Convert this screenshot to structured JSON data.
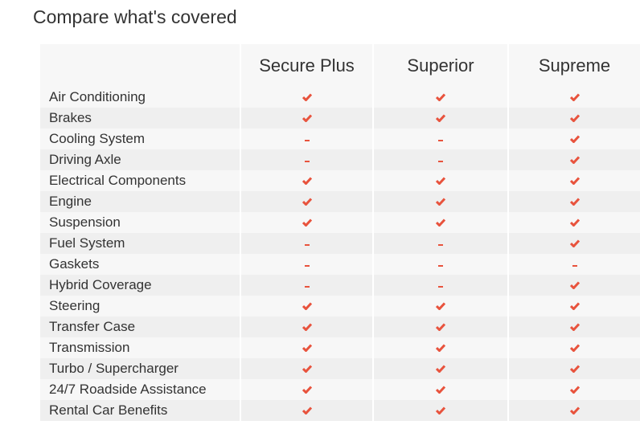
{
  "title": "Compare what's covered",
  "accent_color": "#e8533d",
  "plans": [
    "Secure Plus",
    "Superior",
    "Supreme"
  ],
  "rows": [
    {
      "feature": "Air Conditioning",
      "coverage": [
        true,
        true,
        true
      ]
    },
    {
      "feature": "Brakes",
      "coverage": [
        true,
        true,
        true
      ]
    },
    {
      "feature": "Cooling System",
      "coverage": [
        false,
        false,
        true
      ]
    },
    {
      "feature": "Driving Axle",
      "coverage": [
        false,
        false,
        true
      ]
    },
    {
      "feature": "Electrical Components",
      "coverage": [
        true,
        true,
        true
      ]
    },
    {
      "feature": "Engine",
      "coverage": [
        true,
        true,
        true
      ]
    },
    {
      "feature": "Suspension",
      "coverage": [
        true,
        true,
        true
      ]
    },
    {
      "feature": "Fuel System",
      "coverage": [
        false,
        false,
        true
      ]
    },
    {
      "feature": "Gaskets",
      "coverage": [
        false,
        false,
        false
      ]
    },
    {
      "feature": "Hybrid Coverage",
      "coverage": [
        false,
        false,
        true
      ]
    },
    {
      "feature": "Steering",
      "coverage": [
        true,
        true,
        true
      ]
    },
    {
      "feature": "Transfer Case",
      "coverage": [
        true,
        true,
        true
      ]
    },
    {
      "feature": "Transmission",
      "coverage": [
        true,
        true,
        true
      ]
    },
    {
      "feature": "Turbo / Supercharger",
      "coverage": [
        true,
        true,
        true
      ]
    },
    {
      "feature": "24/7 Roadside Assistance",
      "coverage": [
        true,
        true,
        true
      ]
    },
    {
      "feature": "Rental Car Benefits",
      "coverage": [
        true,
        true,
        true
      ]
    }
  ],
  "icons": {
    "included": "check-icon",
    "not_included": "dash-icon"
  }
}
